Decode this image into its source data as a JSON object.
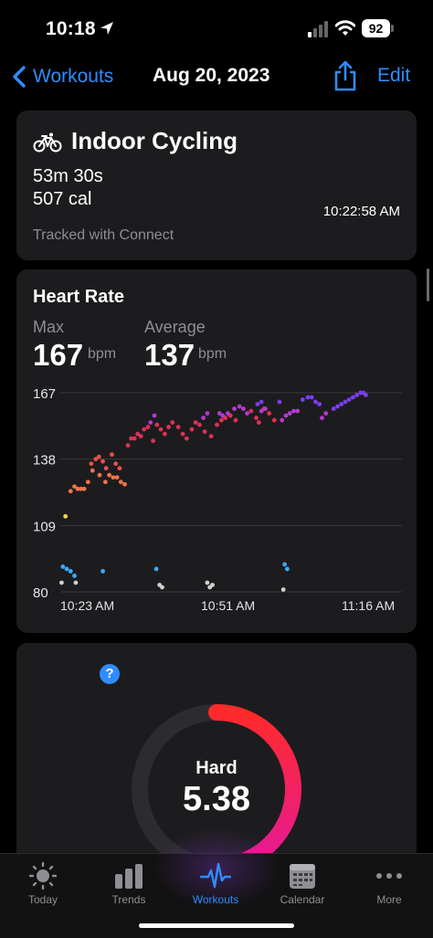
{
  "status_bar": {
    "time": "10:18",
    "battery": "92"
  },
  "nav": {
    "back_label": "Workouts",
    "title": "Aug 20, 2023",
    "edit_label": "Edit"
  },
  "workout": {
    "title": "Indoor Cycling",
    "duration": "53m 30s",
    "calories": "507 cal",
    "time": "10:22:58 AM",
    "tracked": "Tracked with Connect",
    "icon": "bicycle-icon"
  },
  "heart_rate": {
    "title": "Heart Rate",
    "max_label": "Max",
    "max_value": "167",
    "max_unit": "bpm",
    "avg_label": "Average",
    "avg_value": "137",
    "avg_unit": "bpm"
  },
  "chart_data": {
    "type": "scatter",
    "title": "",
    "xlabel": "",
    "ylabel": "",
    "y_ticks": [
      "167",
      "138",
      "109",
      "80"
    ],
    "x_ticks": [
      "10:23 AM",
      "10:51 AM",
      "11:16 AM"
    ],
    "ylim": [
      80,
      167
    ],
    "xlim": [
      0,
      53
    ],
    "grid": "horizontal",
    "series": [
      {
        "color": "#ffd54a",
        "points": [
          [
            0.8,
            113
          ]
        ]
      },
      {
        "color": "#f2734a",
        "points": [
          [
            1.6,
            124
          ],
          [
            2.2,
            126
          ],
          [
            2.7,
            125
          ],
          [
            3.2,
            125
          ],
          [
            3.7,
            125
          ],
          [
            4.3,
            128
          ],
          [
            5.0,
            133
          ],
          [
            6.1,
            131
          ],
          [
            7.0,
            128
          ],
          [
            7.6,
            131
          ],
          [
            8.2,
            130
          ],
          [
            8.8,
            130
          ],
          [
            9.4,
            128
          ],
          [
            10.0,
            127
          ]
        ]
      },
      {
        "color": "#e8504a",
        "points": [
          [
            4.8,
            136
          ],
          [
            5.5,
            138
          ],
          [
            6.0,
            139
          ],
          [
            6.6,
            137
          ],
          [
            7.1,
            134
          ],
          [
            8.0,
            140
          ],
          [
            8.6,
            136
          ],
          [
            9.2,
            134
          ]
        ]
      },
      {
        "color": "#e03055",
        "points": [
          [
            10.5,
            144
          ],
          [
            11.0,
            147
          ],
          [
            11.5,
            147
          ],
          [
            12.0,
            149
          ],
          [
            12.5,
            148
          ],
          [
            13.0,
            151
          ],
          [
            13.6,
            152
          ],
          [
            14.4,
            146
          ],
          [
            15.0,
            153
          ],
          [
            15.6,
            151
          ],
          [
            16.2,
            149
          ],
          [
            16.8,
            152
          ],
          [
            17.4,
            154
          ],
          [
            18.3,
            152
          ],
          [
            19.0,
            149
          ],
          [
            19.6,
            147
          ],
          [
            20.4,
            151
          ],
          [
            21.0,
            154
          ],
          [
            21.6,
            153
          ],
          [
            22.4,
            150
          ],
          [
            23.4,
            148
          ],
          [
            24.3,
            153
          ],
          [
            25.0,
            155
          ],
          [
            25.6,
            156
          ],
          [
            26.4,
            157
          ],
          [
            27.2,
            155
          ],
          [
            29.6,
            159
          ],
          [
            30.4,
            156
          ],
          [
            30.8,
            154
          ],
          [
            31.6,
            160
          ],
          [
            32.4,
            158
          ],
          [
            33.2,
            155
          ]
        ]
      },
      {
        "color": "#b43ad0",
        "points": [
          [
            14.0,
            154
          ],
          [
            14.6,
            157
          ],
          [
            22.2,
            156
          ],
          [
            22.8,
            158
          ],
          [
            24.7,
            158
          ],
          [
            25.2,
            157
          ],
          [
            26.0,
            158
          ],
          [
            27.0,
            160
          ],
          [
            27.8,
            161
          ],
          [
            28.4,
            160
          ],
          [
            29.0,
            158
          ],
          [
            31.2,
            159
          ],
          [
            31.8,
            160
          ],
          [
            34.4,
            155
          ],
          [
            35.0,
            157
          ],
          [
            35.6,
            158
          ],
          [
            36.2,
            159
          ],
          [
            36.8,
            159
          ],
          [
            40.6,
            156
          ],
          [
            41.2,
            158
          ]
        ]
      },
      {
        "color": "#7a3ef0",
        "points": [
          [
            30.6,
            162
          ],
          [
            31.2,
            163
          ],
          [
            34.0,
            163
          ],
          [
            37.6,
            164
          ],
          [
            38.4,
            165
          ],
          [
            39.0,
            165
          ],
          [
            39.6,
            163
          ],
          [
            40.2,
            162
          ],
          [
            42.4,
            160
          ],
          [
            43.0,
            161
          ],
          [
            43.6,
            162
          ],
          [
            44.2,
            163
          ],
          [
            44.8,
            164
          ],
          [
            45.4,
            165
          ],
          [
            46.0,
            166
          ],
          [
            46.6,
            167
          ],
          [
            47.0,
            167
          ],
          [
            47.4,
            166
          ]
        ]
      },
      {
        "color": "#3fa9f5",
        "points": [
          [
            0.4,
            91
          ],
          [
            1.0,
            90
          ],
          [
            1.6,
            89
          ],
          [
            2.2,
            87
          ],
          [
            6.6,
            89
          ],
          [
            14.9,
            90
          ],
          [
            34.8,
            92
          ],
          [
            35.2,
            90
          ]
        ]
      },
      {
        "color": "#d0d0d0",
        "points": [
          [
            0.2,
            84
          ],
          [
            2.4,
            84
          ],
          [
            15.4,
            83
          ],
          [
            15.8,
            82
          ],
          [
            22.8,
            84
          ],
          [
            23.2,
            82
          ],
          [
            23.6,
            83
          ],
          [
            34.6,
            81
          ]
        ]
      }
    ]
  },
  "effort": {
    "level": "Hard",
    "score": "5.38",
    "max_score": 10,
    "help": "?"
  },
  "tabs": [
    {
      "label": "Today",
      "icon": "sun-icon"
    },
    {
      "label": "Trends",
      "icon": "bars-icon"
    },
    {
      "label": "Workouts",
      "icon": "pulse-icon"
    },
    {
      "label": "Calendar",
      "icon": "calendar-icon"
    },
    {
      "label": "More",
      "icon": "more-dots-icon"
    }
  ],
  "colors": {
    "accent": "#2f8cff",
    "card": "#1c1c1e",
    "ring_start": "#ff2a2a",
    "ring_end": "#e6199a"
  }
}
